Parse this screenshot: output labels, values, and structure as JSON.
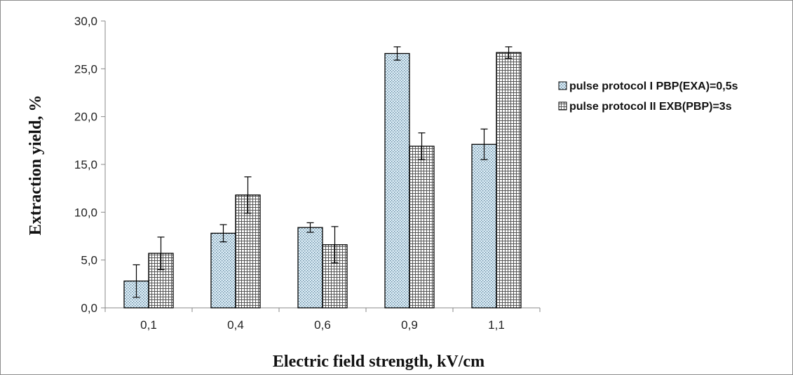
{
  "chart_data": {
    "type": "bar",
    "xlabel": "Electric field strength, kV/cm",
    "ylabel": "Extraction yield, %",
    "categories": [
      "0,1",
      "0,4",
      "0,6",
      "0,9",
      "1,1"
    ],
    "ylim": [
      0,
      30
    ],
    "yticks": [
      "0,0",
      "5,0",
      "10,0",
      "15,0",
      "20,0",
      "25,0",
      "30,0"
    ],
    "grid": false,
    "legend_position": "right",
    "series": [
      {
        "name": "pulse protocol I PBP(EXA)=0,5s",
        "values": [
          2.8,
          7.8,
          8.4,
          26.6,
          17.1
        ],
        "errors": [
          1.7,
          0.9,
          0.5,
          0.7,
          1.6
        ],
        "color": "#ddeef8",
        "pattern": "dotted"
      },
      {
        "name": "pulse protocol II EXB(PBP)=3s",
        "values": [
          5.7,
          11.8,
          6.6,
          16.9,
          26.7
        ],
        "errors": [
          1.7,
          1.9,
          1.9,
          1.4,
          0.6
        ],
        "color": "#ffffff",
        "pattern": "grid"
      }
    ]
  }
}
